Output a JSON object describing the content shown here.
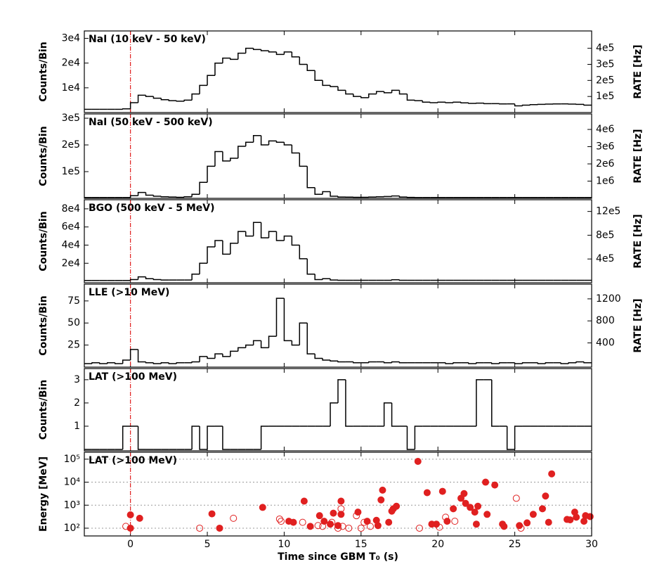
{
  "chart_data": [
    {
      "type": "histogram",
      "title": "NaI (10 keV - 50 keV)",
      "ylabel": "Counts/Bin",
      "y2label": "RATE [Hz]",
      "color": "#000000",
      "vline": {
        "x": 0,
        "color": "#e02020"
      },
      "bins": [
        -3,
        -2.5,
        -2,
        -1.5,
        -1,
        -0.5,
        0,
        0.5,
        1,
        1.5,
        2,
        2.5,
        3,
        3.5,
        4,
        4.5,
        5,
        5.5,
        6,
        6.5,
        7,
        7.5,
        8,
        8.5,
        9,
        9.5,
        10,
        10.5,
        11,
        11.5,
        12,
        12.5,
        13,
        13.5,
        14,
        14.5,
        15,
        15.5,
        16,
        16.5,
        17,
        17.5,
        18,
        18.5,
        19,
        19.5,
        20,
        20.5,
        21,
        21.5,
        22,
        22.5,
        23,
        23.5,
        24,
        24.5,
        25,
        25.5,
        26,
        26.5,
        27,
        27.5,
        28,
        28.5,
        29,
        29.5,
        30
      ],
      "values": [
        1300,
        1300,
        1300,
        1300,
        1300,
        1500,
        4000,
        7000,
        6500,
        5800,
        5200,
        4800,
        4600,
        5000,
        7500,
        11000,
        15000,
        20000,
        22000,
        21500,
        24000,
        26000,
        25500,
        25000,
        24500,
        23500,
        24500,
        22500,
        19500,
        17000,
        13000,
        11000,
        10500,
        9000,
        7500,
        6500,
        6000,
        7500,
        8500,
        8000,
        9000,
        7500,
        5000,
        4800,
        4200,
        4000,
        4200,
        4000,
        4200,
        3900,
        3700,
        3800,
        3600,
        3600,
        3500,
        3500,
        2700,
        3000,
        3200,
        3300,
        3400,
        3500,
        3500,
        3400,
        3300,
        3000
      ],
      "xlim": [
        -3,
        30
      ],
      "ylim": [
        0,
        33000
      ],
      "yticks": [
        {
          "value": 10000,
          "label": "1e4"
        },
        {
          "value": 20000,
          "label": "2e4"
        },
        {
          "value": 30000,
          "label": "3e4"
        }
      ],
      "y2lim": [
        0,
        508000
      ],
      "y2ticks": [
        {
          "value": 100000,
          "label": "1e5"
        },
        {
          "value": 200000,
          "label": "2e5"
        },
        {
          "value": 300000,
          "label": "3e5"
        },
        {
          "value": 400000,
          "label": "4e5"
        }
      ]
    },
    {
      "type": "histogram",
      "title": "NaI (50 keV - 500 keV)",
      "ylabel": "Counts/Bin",
      "y2label": "RATE [Hz]",
      "color": "#000000",
      "vline": {
        "x": 0,
        "color": "#e02020"
      },
      "bins": [
        -3,
        -2.5,
        -2,
        -1.5,
        -1,
        -0.5,
        0,
        0.5,
        1,
        1.5,
        2,
        2.5,
        3,
        3.5,
        4,
        4.5,
        5,
        5.5,
        6,
        6.5,
        7,
        7.5,
        8,
        8.5,
        9,
        9.5,
        10,
        10.5,
        11,
        11.5,
        12,
        12.5,
        13,
        13.5,
        14,
        14.5,
        15,
        15.5,
        16,
        16.5,
        17,
        17.5,
        18,
        18.5,
        19,
        19.5,
        20,
        20.5,
        21,
        21.5,
        22,
        22.5,
        23,
        23.5,
        24,
        24.5,
        25,
        25.5,
        26,
        26.5,
        27,
        27.5,
        28,
        28.5,
        29,
        29.5,
        30
      ],
      "values": [
        3000,
        3000,
        3000,
        3000,
        3000,
        3000,
        10000,
        22000,
        12000,
        8000,
        6000,
        5000,
        4000,
        6000,
        15000,
        60000,
        120000,
        175000,
        140000,
        150000,
        195000,
        210000,
        235000,
        200000,
        215000,
        210000,
        200000,
        170000,
        120000,
        40000,
        15000,
        25000,
        8000,
        5000,
        4500,
        4000,
        4000,
        5000,
        6000,
        7000,
        9000,
        5000,
        3500,
        3000,
        3000,
        3000,
        3000,
        3000,
        3000,
        3000,
        3000,
        3000,
        3000,
        3000,
        3000,
        3000,
        3000,
        3000,
        3000,
        3000,
        3000,
        3000,
        3000,
        3000,
        3000,
        3000
      ],
      "xlim": [
        -3,
        30
      ],
      "ylim": [
        0,
        316000
      ],
      "yticks": [
        {
          "value": 100000,
          "label": "1e5"
        },
        {
          "value": 200000,
          "label": "2e5"
        },
        {
          "value": 300000,
          "label": "3e5"
        }
      ],
      "y2lim": [
        0,
        4900000
      ],
      "y2ticks": [
        {
          "value": 1000000,
          "label": "1e6"
        },
        {
          "value": 2000000,
          "label": "2e6"
        },
        {
          "value": 3000000,
          "label": "3e6"
        },
        {
          "value": 4000000,
          "label": "4e6"
        }
      ]
    },
    {
      "type": "histogram",
      "title": "BGO (500 keV - 5 MeV)",
      "ylabel": "Counts/Bin",
      "y2label": "RATE [Hz]",
      "color": "#000000",
      "vline": {
        "x": 0,
        "color": "#e02020"
      },
      "bins": [
        -3,
        -2.5,
        -2,
        -1.5,
        -1,
        -0.5,
        0,
        0.5,
        1,
        1.5,
        2,
        2.5,
        3,
        3.5,
        4,
        4.5,
        5,
        5.5,
        6,
        6.5,
        7,
        7.5,
        8,
        8.5,
        9,
        9.5,
        10,
        10.5,
        11,
        11.5,
        12,
        12.5,
        13,
        13.5,
        14,
        14.5,
        15,
        15.5,
        16,
        16.5,
        17,
        17.5,
        18,
        18.5,
        19,
        19.5,
        20,
        20.5,
        21,
        21.5,
        22,
        22.5,
        23,
        23.5,
        24,
        24.5,
        25,
        25.5,
        26,
        26.5,
        27,
        27.5,
        28,
        28.5,
        29,
        29.5,
        30
      ],
      "values": [
        1000,
        1000,
        1000,
        1000,
        1000,
        1000,
        2000,
        5000,
        3000,
        2000,
        1500,
        1500,
        1500,
        1500,
        8000,
        20000,
        38000,
        45000,
        30000,
        42000,
        55000,
        50000,
        65000,
        48000,
        55000,
        45000,
        50000,
        40000,
        25000,
        8000,
        2000,
        3000,
        1500,
        1200,
        1200,
        1200,
        1200,
        1200,
        1200,
        1200,
        1800,
        1200,
        1200,
        1200,
        1200,
        1200,
        1200,
        1200,
        1200,
        1200,
        1200,
        1200,
        1200,
        1200,
        1200,
        1200,
        1200,
        1200,
        1200,
        1200,
        1200,
        1200,
        1200,
        1200,
        1200,
        1200
      ],
      "xlim": [
        -3,
        30
      ],
      "ylim": [
        -1500,
        90000
      ],
      "yticks": [
        {
          "value": 20000,
          "label": "2e4"
        },
        {
          "value": 40000,
          "label": "4e4"
        },
        {
          "value": 60000,
          "label": "6e4"
        },
        {
          "value": 80000,
          "label": "8e4"
        }
      ],
      "y2lim": [
        0,
        1397000
      ],
      "y2ticks": [
        {
          "value": 400000,
          "label": "4e5"
        },
        {
          "value": 800000,
          "label": "8e5"
        },
        {
          "value": 1200000,
          "label": "12e5"
        }
      ]
    },
    {
      "type": "histogram",
      "title": "LLE (>10 MeV)",
      "ylabel": "Counts/Bin",
      "y2label": "RATE [Hz]",
      "color": "#000000",
      "vline": {
        "x": 0,
        "color": "#e02020"
      },
      "bins": [
        -3,
        -2.5,
        -2,
        -1.5,
        -1,
        -0.5,
        0,
        0.5,
        1,
        1.5,
        2,
        2.5,
        3,
        3.5,
        4,
        4.5,
        5,
        5.5,
        6,
        6.5,
        7,
        7.5,
        8,
        8.5,
        9,
        9.5,
        10,
        10.5,
        11,
        11.5,
        12,
        12.5,
        13,
        13.5,
        14,
        14.5,
        15,
        15.5,
        16,
        16.5,
        17,
        17.5,
        18,
        18.5,
        19,
        19.5,
        20,
        20.5,
        21,
        21.5,
        22,
        22.5,
        23,
        23.5,
        24,
        24.5,
        25,
        25.5,
        26,
        26.5,
        27,
        27.5,
        28,
        28.5,
        29,
        29.5,
        30
      ],
      "values": [
        4,
        5,
        4,
        5,
        4,
        8,
        20,
        6,
        5,
        4,
        5,
        4,
        5,
        5,
        6,
        12,
        10,
        15,
        12,
        18,
        22,
        25,
        30,
        22,
        35,
        78,
        30,
        25,
        50,
        15,
        10,
        8,
        7,
        6,
        6,
        5,
        5,
        6,
        6,
        5,
        6,
        5,
        5,
        5,
        5,
        5,
        5,
        4,
        5,
        5,
        4,
        5,
        5,
        4,
        5,
        5,
        4,
        5,
        5,
        4,
        5,
        5,
        4,
        5,
        6,
        5
      ],
      "xlim": [
        -3,
        30
      ],
      "ylim": [
        0,
        94
      ],
      "yticks": [
        25,
        50,
        75
      ],
      "y2lim": [
        -40,
        1467
      ],
      "y2ticks": [
        400,
        800,
        1200
      ]
    },
    {
      "type": "histogram",
      "title": "LAT (>100 MeV)",
      "ylabel": "Counts/Bin",
      "color": "#000000",
      "vline": {
        "x": 0,
        "color": "#e02020"
      },
      "bins": [
        -3,
        -2.5,
        -2,
        -1.5,
        -1,
        -0.5,
        0,
        0.5,
        1,
        1.5,
        2,
        2.5,
        3,
        3.5,
        4,
        4.5,
        5,
        5.5,
        6,
        6.5,
        7,
        7.5,
        8,
        8.5,
        9,
        9.5,
        10,
        10.5,
        11,
        11.5,
        12,
        12.5,
        13,
        13.5,
        14,
        14.5,
        15,
        15.5,
        16,
        16.5,
        17,
        17.5,
        18,
        18.5,
        19,
        19.5,
        20,
        20.5,
        21,
        21.5,
        22,
        22.5,
        23,
        23.5,
        24,
        24.5,
        25,
        25.5,
        26,
        26.5,
        27,
        27.5,
        28,
        28.5,
        29,
        29.5,
        30
      ],
      "values": [
        0,
        0,
        0,
        0,
        0,
        1,
        1,
        0,
        0,
        0,
        0,
        0,
        0,
        0,
        1,
        0,
        1,
        1,
        0,
        0,
        0,
        0,
        0,
        1,
        1,
        1,
        1,
        1,
        1,
        1,
        1,
        1,
        2,
        3,
        1,
        1,
        1,
        1,
        1,
        2,
        1,
        1,
        0,
        1,
        1,
        1,
        1,
        1,
        1,
        1,
        1,
        3,
        3,
        1,
        1,
        0,
        1,
        1,
        1,
        1,
        1,
        1,
        1,
        1,
        1,
        1
      ],
      "xlim": [
        -3,
        30
      ],
      "ylim": [
        -0.06,
        3.48
      ],
      "yticks": [
        1,
        2,
        3
      ]
    },
    {
      "type": "scatter",
      "title": "LAT (>100 MeV)",
      "ylabel": "Energy [MeV]",
      "xlabel": "Time since GBM T₀ (s)",
      "vline": {
        "x": 0,
        "color": "#e02020"
      },
      "log_y": true,
      "grid": true,
      "xlim": [
        -3,
        30
      ],
      "xticks": [
        0,
        5,
        10,
        15,
        20,
        25,
        30
      ],
      "ylim": [
        46,
        200000
      ],
      "yticks": [
        {
          "value": 100,
          "label": "10²"
        },
        {
          "value": 1000,
          "label": "10³"
        },
        {
          "value": 10000,
          "label": "10⁴"
        },
        {
          "value": 100000,
          "label": "10⁵"
        }
      ],
      "series": [
        {
          "color": "#e02020",
          "marker": "filled",
          "x": [
            0,
            0,
            0.6,
            5.3,
            5.8,
            8.6,
            10.3,
            10.6,
            11.3,
            11.7,
            12.3,
            12.6,
            13,
            13.2,
            13.5,
            13.7,
            13.7,
            14.8,
            15.4,
            16,
            16.1,
            16.3,
            16.4,
            16.8,
            17,
            17.1,
            17.3,
            18.7,
            19.3,
            19.6,
            19.9,
            20.3,
            20.6,
            21,
            21.5,
            21.7,
            21.8,
            22.1,
            22.4,
            22.5,
            22.6,
            23.1,
            23.2,
            23.7,
            24.2,
            24.3,
            25.3,
            25.8,
            26.2,
            26.8,
            27,
            27.2,
            27.4,
            28.4,
            28.6,
            28.9,
            29,
            29.5,
            29.6,
            29.9
          ],
          "values": [
            380,
            100,
            270,
            420,
            100,
            800,
            200,
            180,
            1500,
            120,
            350,
            200,
            150,
            450,
            130,
            400,
            1500,
            500,
            200,
            220,
            130,
            1700,
            4500,
            180,
            550,
            700,
            900,
            80000,
            3500,
            150,
            150,
            4000,
            200,
            700,
            2000,
            3200,
            1200,
            800,
            500,
            150,
            900,
            10000,
            400,
            7500,
            150,
            120,
            130,
            170,
            400,
            700,
            2500,
            180,
            23000,
            240,
            230,
            500,
            300,
            200,
            350,
            320
          ]
        },
        {
          "color": "#e02020",
          "marker": "open",
          "x": [
            -0.3,
            4.5,
            6.7,
            9.7,
            9.8,
            11.2,
            12.2,
            12.5,
            13.1,
            13.5,
            13.7,
            13.8,
            14.2,
            14.7,
            15,
            15.2,
            15.6,
            18.8,
            20.1,
            20.5,
            21.1,
            25.1,
            25.4
          ],
          "values": [
            120,
            100,
            270,
            250,
            200,
            180,
            130,
            120,
            180,
            100,
            700,
            120,
            100,
            350,
            100,
            180,
            120,
            100,
            110,
            300,
            200,
            2000,
            100
          ]
        }
      ]
    }
  ]
}
